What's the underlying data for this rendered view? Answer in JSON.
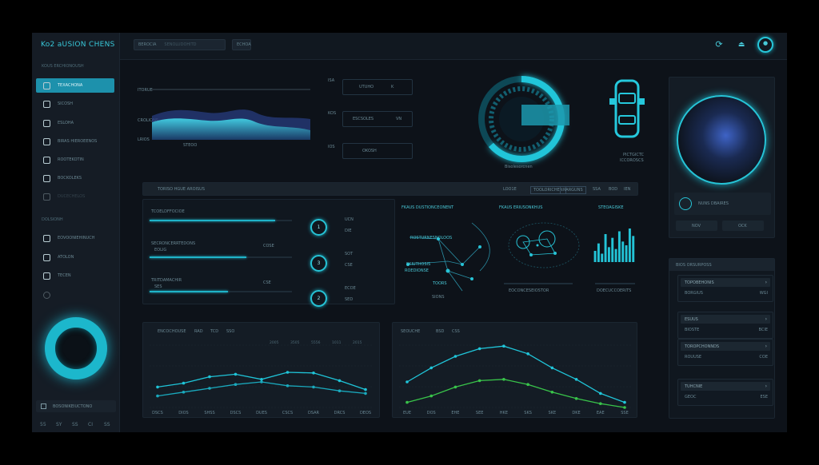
{
  "app": {
    "title": "Ko2 aUSION CHENS"
  },
  "sidebar": {
    "section1": "KOUS ERCHIONOUSH",
    "items": [
      {
        "label": "TEXACHONA",
        "icon": "dashboard-icon",
        "active": true
      },
      {
        "label": "SICOSH",
        "icon": "user-icon"
      },
      {
        "label": "ESLOHA",
        "icon": "settings-icon"
      },
      {
        "label": "BIRAS HIEROEENOS",
        "icon": "chart-icon"
      },
      {
        "label": "ROOTEKOTIN",
        "icon": "person-icon"
      },
      {
        "label": "BOCKOLEKS",
        "icon": "gear-icon"
      },
      {
        "label": "DUCECHELOS",
        "icon": "grid-icon"
      }
    ],
    "section2": "DOLSIONH",
    "items2": [
      {
        "label": "EOVOONIEHINUCH",
        "icon": "refresh-icon"
      },
      {
        "label": "ATOLON",
        "icon": "analytics-icon"
      },
      {
        "label": "TECEN",
        "icon": "recycle-icon"
      },
      {
        "label": "",
        "icon": "circle-icon"
      }
    ],
    "user": "BOSONIKEIUCTONO",
    "footer": [
      "55",
      "SY",
      "SS",
      "CI",
      "SS"
    ]
  },
  "topbar": {
    "tab1": "BEROCIA",
    "search_placeholder": "SENOLUDOHITD",
    "tab3": "ECHOA"
  },
  "overview": {
    "area_chart": {
      "label_top": "ITORUE",
      "label_mid": "CROLIONS",
      "label_bot": "LRIOS",
      "label_x": "STEOO",
      "accent": "#1fb6cb"
    },
    "legends": [
      {
        "left": "ISA",
        "mid": "UTUHO",
        "val": "K"
      },
      {
        "left": "KOS",
        "mid": "ESCSOLES",
        "val": "VN"
      },
      {
        "left": "IOS",
        "mid": "OKOSH",
        "val": ""
      }
    ],
    "ring_caption": "Bisolesorcnen",
    "car_legend": [
      "PICTGICTC",
      "ICCOROSCS"
    ]
  },
  "profile": {
    "status": "NUNS DBAIRES",
    "btn1": "NOV",
    "btn2": "OCK"
  },
  "filter_bar": {
    "title": "TORISO HGUE AROISUS",
    "chips": [
      "LOO1E",
      "TOOLORICHEN",
      "RARGUNS",
      "SSA",
      "BOD",
      "IEN"
    ]
  },
  "metrics": [
    {
      "title": "TCOELDFFOCIOE",
      "left": "",
      "right": "",
      "progress": 0.88,
      "ring": "1",
      "codes": [
        "UCN",
        "DIE"
      ]
    },
    {
      "title": "SECRONCERRTEDONS",
      "left": "EOLIG",
      "right": "COSE",
      "progress": 0.68,
      "ring": "3",
      "codes": [
        "SOT",
        "CSE"
      ]
    },
    {
      "title": "TRITDAMACHIR",
      "left": "SES",
      "right": "CSE",
      "progress": 0.55,
      "ring": "2",
      "codes": [
        "ECOE",
        "SED"
      ]
    }
  ],
  "network": {
    "title": "FKAUS DUSTIONCEONENT",
    "nodes": [
      "ROSTURNESNOLOOS",
      "SKIUTHOSIS",
      "ROEDIONSE",
      "TOORS"
    ],
    "footer": "SIONS"
  },
  "topology": {
    "title": "FKAUS ERIUSONKHUS",
    "footer": "EOCONCESEIOSTOR"
  },
  "bar_mini": {
    "title": "STEOAGISKE",
    "values": [
      12,
      20,
      9,
      30,
      16,
      26,
      14,
      33,
      22,
      18,
      36,
      28
    ],
    "footer": "DOECUCCOERITS"
  },
  "line_chart_1": {
    "title": "ENCOCHOUSE",
    "chips": [
      "RAD",
      "TCD",
      "SSO"
    ],
    "x_labels": [
      "DSCS",
      "DIOS",
      "SHSS",
      "DSCS",
      "DUES",
      "CSCS",
      "DSAR",
      "DRCS",
      "DEOS"
    ],
    "grid_labels": [
      "2005",
      "3505",
      "5556",
      "1011",
      "2015"
    ],
    "series": [
      {
        "color": "#1fc4d8",
        "values": [
          32,
          38,
          48,
          52,
          44,
          55,
          54,
          42,
          28
        ]
      },
      {
        "color": "#1aa9bd",
        "values": [
          18,
          24,
          30,
          36,
          40,
          34,
          32,
          26,
          22
        ]
      }
    ]
  },
  "line_chart_2": {
    "title": "SEOUCHE",
    "chips": [
      "BSD",
      "CSS"
    ],
    "x_labels": [
      "EUE",
      "DOS",
      "EHE",
      "SEE",
      "HKE",
      "SKS",
      "SKE",
      "DKE",
      "EAE",
      "SSE"
    ],
    "series": [
      {
        "color": "#20c6da",
        "values": [
          40,
          62,
          80,
          92,
          96,
          84,
          62,
          44,
          22,
          8
        ]
      },
      {
        "color": "#39c44a",
        "values": [
          8,
          18,
          32,
          42,
          44,
          36,
          24,
          14,
          6,
          0
        ]
      }
    ]
  },
  "recent": {
    "title": "BIOS ORSURPOSS",
    "items": [
      {
        "title": "TOPOBEHONIS",
        "sub": "BORGIUS",
        "val": "WGI"
      },
      {
        "title": "ESUUS",
        "sub": "BIOSTE",
        "val": "BCIE"
      },
      {
        "title": "TOROPCHONNDS",
        "sub": "ROUUSE",
        "val": "COE"
      },
      {
        "title": "TUHCNIE",
        "sub": "GEOC",
        "val": "ESE"
      }
    ]
  }
}
